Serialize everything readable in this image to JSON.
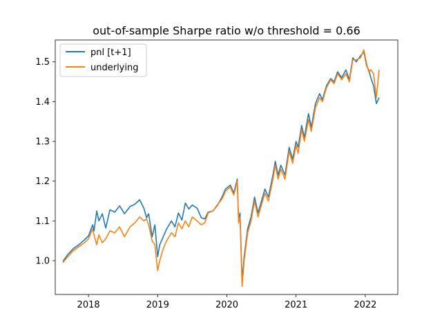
{
  "chart_data": {
    "type": "line",
    "title": "out-of-sample Sharpe ratio w/o threshold = 0.66",
    "xlabel": "",
    "ylabel": "",
    "xlim": [
      2017.52,
      2022.47
    ],
    "ylim": [
      0.915,
      1.555
    ],
    "x_ticks": [
      2018,
      2019,
      2020,
      2021,
      2022
    ],
    "x_tick_labels": [
      "2018",
      "2019",
      "2020",
      "2021",
      "2022"
    ],
    "y_ticks": [
      1.0,
      1.1,
      1.2,
      1.3,
      1.4,
      1.5
    ],
    "y_tick_labels": [
      "1.0",
      "1.1",
      "1.2",
      "1.3",
      "1.4",
      "1.5"
    ],
    "grid": false,
    "legend_position": "upper-left",
    "series": [
      {
        "name": "pnl [t+1]",
        "color": "#1f77b4",
        "points": [
          [
            2017.63,
            0.998
          ],
          [
            2017.7,
            1.015
          ],
          [
            2017.78,
            1.03
          ],
          [
            2017.86,
            1.04
          ],
          [
            2017.94,
            1.052
          ],
          [
            2018.0,
            1.062
          ],
          [
            2018.06,
            1.09
          ],
          [
            2018.08,
            1.075
          ],
          [
            2018.12,
            1.125
          ],
          [
            2018.15,
            1.1
          ],
          [
            2018.2,
            1.118
          ],
          [
            2018.25,
            1.082
          ],
          [
            2018.31,
            1.128
          ],
          [
            2018.38,
            1.122
          ],
          [
            2018.45,
            1.138
          ],
          [
            2018.52,
            1.118
          ],
          [
            2018.6,
            1.136
          ],
          [
            2018.67,
            1.142
          ],
          [
            2018.74,
            1.153
          ],
          [
            2018.8,
            1.132
          ],
          [
            2018.84,
            1.108
          ],
          [
            2018.87,
            1.118
          ],
          [
            2018.92,
            1.06
          ],
          [
            2018.96,
            1.09
          ],
          [
            2019.0,
            1.01
          ],
          [
            2019.03,
            1.04
          ],
          [
            2019.08,
            1.06
          ],
          [
            2019.13,
            1.08
          ],
          [
            2019.2,
            1.1
          ],
          [
            2019.25,
            1.085
          ],
          [
            2019.3,
            1.12
          ],
          [
            2019.35,
            1.102
          ],
          [
            2019.4,
            1.145
          ],
          [
            2019.45,
            1.13
          ],
          [
            2019.5,
            1.14
          ],
          [
            2019.57,
            1.132
          ],
          [
            2019.63,
            1.108
          ],
          [
            2019.68,
            1.105
          ],
          [
            2019.73,
            1.122
          ],
          [
            2019.8,
            1.125
          ],
          [
            2019.86,
            1.138
          ],
          [
            2019.93,
            1.16
          ],
          [
            2019.98,
            1.18
          ],
          [
            2020.05,
            1.19
          ],
          [
            2020.1,
            1.17
          ],
          [
            2020.15,
            1.205
          ],
          [
            2020.17,
            1.1
          ],
          [
            2020.19,
            1.12
          ],
          [
            2020.22,
            0.95
          ],
          [
            2020.25,
            1.01
          ],
          [
            2020.3,
            1.08
          ],
          [
            2020.35,
            1.11
          ],
          [
            2020.4,
            1.16
          ],
          [
            2020.45,
            1.12
          ],
          [
            2020.5,
            1.15
          ],
          [
            2020.55,
            1.18
          ],
          [
            2020.6,
            1.16
          ],
          [
            2020.66,
            1.21
          ],
          [
            2020.7,
            1.25
          ],
          [
            2020.74,
            1.215
          ],
          [
            2020.78,
            1.24
          ],
          [
            2020.84,
            1.215
          ],
          [
            2020.9,
            1.285
          ],
          [
            2020.95,
            1.255
          ],
          [
            2021.0,
            1.3
          ],
          [
            2021.03,
            1.285
          ],
          [
            2021.08,
            1.34
          ],
          [
            2021.12,
            1.31
          ],
          [
            2021.18,
            1.37
          ],
          [
            2021.22,
            1.335
          ],
          [
            2021.28,
            1.395
          ],
          [
            2021.34,
            1.42
          ],
          [
            2021.38,
            1.405
          ],
          [
            2021.44,
            1.44
          ],
          [
            2021.5,
            1.458
          ],
          [
            2021.55,
            1.45
          ],
          [
            2021.6,
            1.475
          ],
          [
            2021.66,
            1.46
          ],
          [
            2021.72,
            1.48
          ],
          [
            2021.77,
            1.455
          ],
          [
            2021.82,
            1.51
          ],
          [
            2021.87,
            1.5
          ],
          [
            2021.93,
            1.515
          ],
          [
            2021.98,
            1.525
          ],
          [
            2022.02,
            1.49
          ],
          [
            2022.05,
            1.48
          ],
          [
            2022.08,
            1.46
          ],
          [
            2022.12,
            1.44
          ],
          [
            2022.16,
            1.395
          ],
          [
            2022.2,
            1.41
          ]
        ]
      },
      {
        "name": "underlying",
        "color": "#ff7f0e",
        "points": [
          [
            2017.63,
            0.995
          ],
          [
            2017.7,
            1.01
          ],
          [
            2017.78,
            1.025
          ],
          [
            2017.86,
            1.035
          ],
          [
            2017.94,
            1.045
          ],
          [
            2018.0,
            1.055
          ],
          [
            2018.06,
            1.08
          ],
          [
            2018.08,
            1.065
          ],
          [
            2018.12,
            1.04
          ],
          [
            2018.15,
            1.065
          ],
          [
            2018.2,
            1.045
          ],
          [
            2018.25,
            1.055
          ],
          [
            2018.31,
            1.075
          ],
          [
            2018.38,
            1.07
          ],
          [
            2018.45,
            1.085
          ],
          [
            2018.52,
            1.06
          ],
          [
            2018.6,
            1.085
          ],
          [
            2018.67,
            1.095
          ],
          [
            2018.74,
            1.11
          ],
          [
            2018.8,
            1.1
          ],
          [
            2018.84,
            1.105
          ],
          [
            2018.87,
            1.09
          ],
          [
            2018.92,
            1.05
          ],
          [
            2018.96,
            1.04
          ],
          [
            2019.0,
            0.975
          ],
          [
            2019.03,
            1.0
          ],
          [
            2019.08,
            1.03
          ],
          [
            2019.13,
            1.05
          ],
          [
            2019.2,
            1.07
          ],
          [
            2019.25,
            1.06
          ],
          [
            2019.3,
            1.095
          ],
          [
            2019.35,
            1.08
          ],
          [
            2019.4,
            1.1
          ],
          [
            2019.45,
            1.085
          ],
          [
            2019.5,
            1.11
          ],
          [
            2019.57,
            1.1
          ],
          [
            2019.63,
            1.09
          ],
          [
            2019.68,
            1.095
          ],
          [
            2019.73,
            1.12
          ],
          [
            2019.8,
            1.125
          ],
          [
            2019.86,
            1.14
          ],
          [
            2019.93,
            1.155
          ],
          [
            2019.98,
            1.175
          ],
          [
            2020.05,
            1.185
          ],
          [
            2020.1,
            1.165
          ],
          [
            2020.15,
            1.2
          ],
          [
            2020.17,
            1.095
          ],
          [
            2020.19,
            1.11
          ],
          [
            2020.22,
            0.935
          ],
          [
            2020.25,
            1.0
          ],
          [
            2020.3,
            1.07
          ],
          [
            2020.35,
            1.1
          ],
          [
            2020.4,
            1.15
          ],
          [
            2020.45,
            1.11
          ],
          [
            2020.5,
            1.14
          ],
          [
            2020.55,
            1.17
          ],
          [
            2020.6,
            1.15
          ],
          [
            2020.66,
            1.2
          ],
          [
            2020.7,
            1.24
          ],
          [
            2020.74,
            1.205
          ],
          [
            2020.78,
            1.23
          ],
          [
            2020.84,
            1.205
          ],
          [
            2020.9,
            1.275
          ],
          [
            2020.95,
            1.245
          ],
          [
            2021.0,
            1.29
          ],
          [
            2021.03,
            1.27
          ],
          [
            2021.08,
            1.33
          ],
          [
            2021.12,
            1.3
          ],
          [
            2021.18,
            1.355
          ],
          [
            2021.22,
            1.325
          ],
          [
            2021.28,
            1.385
          ],
          [
            2021.34,
            1.41
          ],
          [
            2021.38,
            1.4
          ],
          [
            2021.44,
            1.435
          ],
          [
            2021.5,
            1.455
          ],
          [
            2021.55,
            1.445
          ],
          [
            2021.6,
            1.47
          ],
          [
            2021.66,
            1.455
          ],
          [
            2021.72,
            1.47
          ],
          [
            2021.77,
            1.45
          ],
          [
            2021.82,
            1.505
          ],
          [
            2021.87,
            1.505
          ],
          [
            2021.93,
            1.51
          ],
          [
            2021.98,
            1.53
          ],
          [
            2022.02,
            1.495
          ],
          [
            2022.05,
            1.475
          ],
          [
            2022.08,
            1.48
          ],
          [
            2022.12,
            1.47
          ],
          [
            2022.16,
            1.41
          ],
          [
            2022.2,
            1.48
          ]
        ]
      }
    ]
  }
}
